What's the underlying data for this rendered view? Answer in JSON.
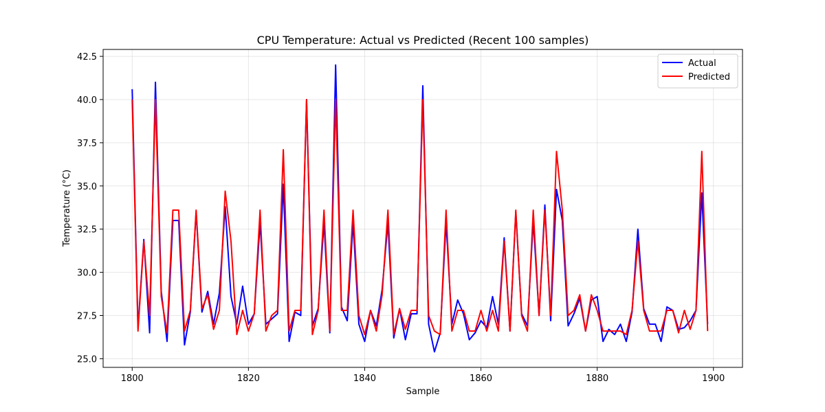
{
  "chart_data": {
    "type": "line",
    "title": "CPU Temperature: Actual vs Predicted (Recent 100 samples)",
    "xlabel": "Sample",
    "ylabel": "Temperature (°C)",
    "xlim": [
      1795,
      1905
    ],
    "ylim": [
      24.5,
      42.9
    ],
    "xticks": [
      1800,
      1820,
      1840,
      1860,
      1880,
      1900
    ],
    "yticks": [
      25.0,
      27.5,
      30.0,
      32.5,
      35.0,
      37.5,
      40.0,
      42.5
    ],
    "ytick_labels": [
      "25.0",
      "27.5",
      "30.0",
      "32.5",
      "35.0",
      "37.5",
      "40.0",
      "42.5"
    ],
    "grid": true,
    "legend_position": "top-right",
    "x_start": 1800,
    "series": [
      {
        "name": "Actual",
        "color": "#0000ff",
        "values": [
          40.6,
          26.8,
          31.9,
          26.5,
          41.0,
          28.9,
          26.0,
          33.0,
          33.0,
          25.8,
          27.7,
          33.5,
          27.7,
          28.9,
          27.0,
          28.8,
          33.8,
          28.6,
          27.0,
          29.2,
          27.0,
          27.6,
          32.9,
          27.0,
          27.3,
          27.6,
          35.1,
          26.0,
          27.7,
          27.5,
          40.0,
          26.9,
          27.9,
          32.9,
          26.5,
          42.0,
          28.0,
          27.2,
          32.9,
          27.0,
          26.0,
          27.8,
          26.9,
          29.0,
          32.9,
          26.2,
          27.9,
          26.1,
          27.6,
          27.6,
          40.8,
          27.0,
          25.4,
          26.5,
          32.9,
          27.0,
          28.4,
          27.6,
          26.1,
          26.5,
          27.2,
          26.8,
          28.6,
          27.0,
          32.0,
          26.6,
          33.5,
          27.6,
          26.9,
          33.0,
          27.5,
          33.9,
          27.2,
          34.8,
          33.0,
          26.9,
          27.6,
          28.5,
          26.6,
          28.4,
          28.6,
          26.0,
          26.7,
          26.4,
          27.0,
          26.0,
          27.7,
          32.5,
          27.9,
          27.0,
          27.0,
          26.0,
          28.0,
          27.8,
          26.7,
          26.8,
          27.2,
          27.8,
          34.6,
          27.0
        ]
      },
      {
        "name": "Predicted",
        "color": "#ff0000",
        "values": [
          40.0,
          26.6,
          31.8,
          27.5,
          40.0,
          28.6,
          26.5,
          33.6,
          33.6,
          26.6,
          27.8,
          33.6,
          27.9,
          28.7,
          26.7,
          27.8,
          34.7,
          31.8,
          26.4,
          27.8,
          26.6,
          27.6,
          33.6,
          26.6,
          27.5,
          27.8,
          37.1,
          26.6,
          27.8,
          27.8,
          40.0,
          26.4,
          27.8,
          33.6,
          26.6,
          40.0,
          27.8,
          27.8,
          33.6,
          27.5,
          26.4,
          27.8,
          26.6,
          28.7,
          33.6,
          26.4,
          27.9,
          26.7,
          27.8,
          27.8,
          40.0,
          27.5,
          26.6,
          26.4,
          33.6,
          26.6,
          27.8,
          27.8,
          26.6,
          26.6,
          27.8,
          26.6,
          27.8,
          26.6,
          31.8,
          26.6,
          33.6,
          27.5,
          26.6,
          33.6,
          27.5,
          33.6,
          27.5,
          37.0,
          33.6,
          27.5,
          27.8,
          28.7,
          26.6,
          28.7,
          27.8,
          26.6,
          26.6,
          26.6,
          26.6,
          26.4,
          27.8,
          31.8,
          27.8,
          26.6,
          26.6,
          26.6,
          27.8,
          27.8,
          26.5,
          27.8,
          26.7,
          27.8,
          37.0,
          26.6
        ]
      }
    ]
  }
}
